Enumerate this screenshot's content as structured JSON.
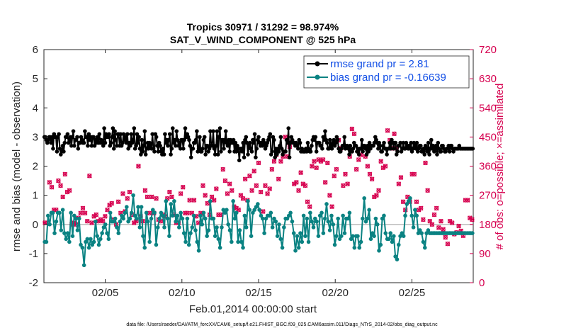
{
  "chart_data": {
    "type": "line",
    "title": "Tropics 30971 / 31292 = 98.974%",
    "subtitle": "SAT_V_WIND_COMPONENT @ 525 hPa",
    "xlabel": "Feb.01,2014 00:00:00 start",
    "ylabel": "rmse and bias (model - observation)",
    "y2label": "# of obs: o=possible; ×=assimilated",
    "footnote": "data file: /Users/raeder/DAI/ATM_forcXX/CAM6_setup/f.e21.FHIST_BGC.f09_025.CAM6assim.011/Diags_NTrS_2014-02/obs_diag_output.nc",
    "xlim": [
      1,
      29
    ],
    "ylim": [
      -2,
      6
    ],
    "y2lim": [
      0,
      720
    ],
    "xticks": [
      5,
      10,
      15,
      20,
      25
    ],
    "xtick_labels": [
      "02/05",
      "02/10",
      "02/15",
      "02/20",
      "02/25"
    ],
    "yticks": [
      "-2",
      "-1",
      "0",
      "1",
      "2",
      "3",
      "4",
      "5",
      "6"
    ],
    "y2ticks": [
      "0",
      "90",
      "180",
      "270",
      "360",
      "450",
      "540",
      "630",
      "720"
    ],
    "legend": [
      "rmse grand pr = 2.81",
      "bias grand pr = -0.16639"
    ],
    "colors": {
      "rmse": "#000000",
      "bias": "#0a8282",
      "obs": "#d6004f",
      "zero": "#bfbfbf",
      "legend_text": "#1450e6"
    },
    "rmse": [
      3.0,
      3.0,
      2.9,
      2.8,
      2.9,
      3.0,
      3.0,
      2.8,
      3.0,
      2.6,
      3.1,
      3.0,
      3.0,
      2.5,
      3.0,
      3.1,
      2.6,
      2.4,
      2.5,
      2.7,
      2.5,
      2.8,
      3.0,
      3.0,
      3.1,
      2.8,
      2.9,
      3.0,
      2.7,
      3.0,
      3.2,
      2.7,
      2.9,
      2.9,
      3.0,
      2.6,
      2.8,
      2.8,
      3.0,
      2.9,
      2.8,
      2.8,
      3.2,
      3.0,
      3.0,
      2.7,
      3.1,
      2.9,
      3.0,
      2.7,
      3.0,
      3.0,
      2.7,
      2.9,
      2.8,
      3.0,
      2.8,
      3.1,
      2.8,
      2.9,
      2.8,
      2.7,
      3.3,
      2.8,
      3.1,
      3.0,
      3.0,
      3.1,
      2.7,
      2.8,
      3.0,
      3.3,
      2.6,
      3.2,
      2.9,
      2.7,
      3.1,
      3.1,
      2.7,
      3.1,
      2.7,
      2.8,
      3.1,
      2.9,
      3.0,
      2.8,
      3.1,
      2.6,
      2.8,
      2.7,
      3.1,
      2.8,
      2.9,
      3.3,
      2.6,
      2.7,
      3.1,
      2.8,
      3.0,
      2.6,
      2.4,
      2.9,
      2.5,
      2.7,
      3.2,
      2.4,
      2.6,
      2.8,
      2.6,
      2.8,
      2.7,
      2.6,
      3.1,
      2.6,
      2.5,
      3.1,
      3.0,
      2.7,
      2.5,
      2.8,
      2.7,
      2.5,
      2.4,
      2.6,
      2.4,
      3.1,
      2.8,
      2.9,
      2.7,
      2.9,
      3.1,
      2.4,
      2.6,
      3.3,
      2.8,
      2.9,
      2.7,
      3.2,
      2.9,
      2.7,
      2.8,
      2.6,
      2.9,
      2.9,
      2.6,
      2.9,
      3.3,
      3.0,
      3.1,
      3.0,
      2.9,
      2.7,
      2.3,
      2.6,
      2.6,
      2.8,
      2.8,
      2.9,
      3.2,
      2.5,
      2.6,
      3.0,
      2.5,
      2.5,
      2.6,
      2.9,
      3.0,
      2.4,
      2.7,
      2.7,
      2.5,
      2.6,
      3.2,
      2.7,
      2.7,
      3.2,
      2.6,
      2.4,
      2.7,
      3.2,
      2.4,
      3.0,
      3.3,
      2.5,
      2.9,
      2.9,
      2.6,
      2.9,
      3.2,
      2.8,
      2.7,
      2.9,
      2.5,
      2.9,
      2.8,
      2.8,
      2.9,
      2.5,
      2.8,
      2.5,
      2.7,
      2.6,
      2.2,
      2.6,
      2.6,
      2.5,
      2.8,
      2.3,
      2.9,
      3.0,
      2.8,
      2.4,
      2.7,
      2.8,
      2.6,
      2.5,
      2.9,
      2.8,
      3.1,
      2.3,
      2.6,
      2.9,
      3.0,
      2.8,
      2.7,
      2.8,
      2.7,
      2.9,
      2.8,
      2.6,
      2.7,
      2.8,
      2.9,
      3.0,
      3.1,
      2.4,
      2.5,
      3.0,
      2.9,
      2.3,
      2.6,
      2.4,
      2.6,
      2.5,
      2.7,
      3.0,
      2.6,
      2.4,
      2.5,
      2.5,
      2.5,
      2.9,
      2.8,
      3.3,
      2.3,
      2.8,
      3.0,
      2.9,
      2.8,
      2.8,
      2.7,
      2.8,
      2.7,
      2.6,
      2.9,
      2.8,
      2.5,
      2.6,
      2.5,
      2.5,
      2.5,
      2.6,
      2.5,
      2.8,
      2.6,
      2.5,
      2.5,
      2.7,
      2.9,
      3.0,
      2.9,
      3.0,
      2.5,
      2.8,
      2.8,
      2.8,
      2.7,
      2.7,
      2.6,
      3.0,
      2.9,
      3.2,
      2.9,
      2.8,
      2.6,
      2.6,
      2.9,
      2.7,
      2.6,
      2.8,
      2.9,
      2.7,
      2.8,
      3.0,
      2.9,
      2.6,
      2.5,
      2.5,
      2.6,
      2.7,
      2.7,
      3.0,
      2.6,
      2.7,
      2.7,
      2.6,
      2.4,
      2.7,
      2.5,
      2.5,
      2.6,
      2.8,
      2.7,
      2.7,
      2.5,
      2.6,
      2.4,
      2.6,
      2.6,
      2.9,
      2.5,
      2.7,
      2.7,
      2.6,
      2.4,
      2.7,
      2.5,
      2.8,
      2.6,
      2.7,
      2.7,
      2.7,
      2.8,
      3.0,
      2.9,
      2.8,
      2.6,
      2.8,
      2.7,
      2.5,
      2.5,
      2.7,
      2.8,
      2.6,
      2.6,
      2.4,
      2.6,
      2.6,
      2.8,
      2.6,
      2.9,
      2.8,
      2.6,
      2.8,
      2.8,
      2.4,
      2.5,
      2.7,
      2.7,
      2.8,
      2.5,
      2.6,
      2.8,
      2.6,
      2.6,
      2.8,
      2.7,
      2.6,
      2.7,
      2.6,
      2.8,
      2.5,
      2.6,
      2.8,
      2.7,
      2.6,
      2.8,
      2.5,
      2.6,
      2.7,
      2.7,
      2.5,
      2.5,
      2.6,
      2.4,
      2.7,
      2.6,
      2.5,
      2.8,
      2.4,
      2.6,
      2.9,
      2.6,
      2.7,
      2.5,
      2.6,
      2.7,
      2.4,
      2.8,
      2.6,
      2.5,
      2.5,
      2.7,
      2.7,
      2.6,
      2.5,
      2.5,
      2.6,
      2.6,
      2.7,
      2.5,
      2.7,
      2.7,
      2.6,
      2.5,
      2.6,
      2.6,
      2.6,
      2.6,
      2.6,
      2.7,
      2.6,
      2.6,
      2.6,
      2.6,
      2.6,
      2.6,
      2.6,
      2.6,
      2.6,
      2.6,
      2.6,
      2.6,
      2.6,
      2.6
    ],
    "bias": [
      -0.6,
      -0.6,
      0.3,
      0.0,
      0.4,
      0.4,
      -0.3,
      0.1,
      0.4,
      0.4,
      -0.2,
      0.5,
      -0.3,
      -0.5,
      -0.3,
      -0.6,
      0.4,
      -0.4,
      0.3,
      0.2,
      -0.2,
      0.2,
      -0.7,
      -0.8,
      -1.4,
      -0.6,
      -0.5,
      -0.8,
      -0.5,
      -0.7,
      -0.6,
      0.1,
      -0.4,
      -0.7,
      -0.5,
      -0.3,
      -0.1,
      0.0,
      -0.3,
      -0.5,
      0.4,
      0.1,
      0.1,
      0.2,
      -0.1,
      -0.3,
      0.1,
      0.3,
      0.2,
      0.4,
      0.6,
      0.1,
      0.2,
      0.4,
      1.0,
      0.3,
      0.2,
      0.6,
      -0.1,
      0.6,
      -0.4,
      -0.8,
      0.4,
      0.1,
      -0.6,
      0.2,
      0.5,
      0.4,
      -0.7,
      -0.1,
      0.2,
      0.4,
      0.3,
      -0.1,
      0.8,
      0.2,
      -0.4,
      0.7,
      0.3,
      0.8,
      0.1,
      0.3,
      -0.1,
      0.4,
      0.2,
      -0.3,
      -0.6,
      0.2,
      -0.7,
      -0.3,
      -0.1,
      0.3,
      -0.2,
      -0.6,
      -0.9,
      0.3,
      0.0,
      0.4,
      0.2,
      -0.4,
      -0.2,
      0.8,
      0.2,
      0.2,
      -0.4,
      -0.1,
      -0.5,
      -0.8,
      -0.1,
      0.5,
      0.4,
      0.5,
      0.0,
      -0.2,
      -0.6,
      0.8,
      0.2,
      0.4,
      -0.6,
      -0.2,
      -0.6,
      -0.8,
      0.3,
      -0.1,
      0.8,
      0.5,
      -0.4,
      0.4,
      0.5,
      0.6,
      0.7,
      0.5,
      0.3,
      0.2,
      -0.3,
      0.2,
      0.3,
      0.3,
      0.4,
      -0.1,
      0.2,
      0.1,
      -0.4,
      0.0,
      -0.5,
      -0.8,
      -0.1,
      0.2,
      0.2,
      0.3,
      0.4,
      0.1,
      -0.3,
      -0.9,
      -0.4,
      -0.8,
      -0.3,
      -0.6,
      0.3,
      -0.4,
      0.2,
      -0.6,
      0.4,
      0.1,
      -0.1,
      0.2,
      0.1,
      -0.4,
      0.3,
      0.4,
      -0.3,
      0.2,
      0.7,
      0.1,
      -0.2,
      0.3,
      0.0,
      -0.7,
      -0.4,
      0.2,
      -0.5,
      -0.4,
      0.3,
      -0.3,
      0.2,
      0.2,
      0.4,
      -0.5,
      -0.4,
      -0.8,
      -0.4,
      -0.4,
      -0.8,
      -0.6,
      0.2,
      0.9,
      0.1,
      0.2,
      0.5,
      -0.5,
      -0.3,
      -0.4,
      0.2,
      0.0,
      -0.9,
      -0.7,
      0.2,
      0.3,
      -0.3,
      -0.5,
      -0.5,
      -0.3,
      -0.6,
      -0.4,
      -1.1,
      -1.2,
      -0.7,
      -0.4,
      -0.3,
      -0.4,
      0.3,
      0.7,
      0.8,
      0.9,
      0.3,
      -0.1,
      0.5,
      0.3,
      -0.3,
      -0.2,
      -0.3,
      -0.6,
      -0.8,
      -0.3,
      -0.2,
      -0.3,
      -0.3,
      -0.3,
      -0.3,
      -0.3,
      -0.3,
      -0.3,
      -0.3,
      -0.3,
      -0.3,
      -0.3,
      -0.3,
      -0.3,
      -0.3,
      -0.3,
      -0.3,
      -0.3,
      -0.3,
      -0.3,
      -0.3,
      -0.3,
      -0.3,
      -0.3,
      -0.3,
      -0.3,
      -0.3,
      -0.3
    ],
    "obs_possible": [
      185,
      185,
      310,
      295,
      225,
      225,
      315,
      300,
      265,
      335,
      280,
      285,
      180,
      185,
      180,
      200,
      215,
      230,
      215,
      190,
      330,
      185,
      205,
      210,
      190,
      195,
      190,
      205,
      225,
      240,
      245,
      195,
      180,
      250,
      215,
      275,
      220,
      260,
      280,
      210,
      185,
      190,
      360,
      205,
      190,
      285,
      265,
      215,
      265,
      215,
      260,
      195,
      190,
      210,
      205,
      260,
      280,
      265,
      210,
      185,
      185,
      275,
      295,
      215,
      215,
      255,
      215,
      255,
      205,
      185,
      215,
      300,
      270,
      245,
      210,
      265,
      255,
      290,
      210,
      210,
      350,
      315,
      275,
      305,
      285,
      235,
      230,
      225,
      270,
      260,
      320,
      255,
      330,
      285,
      345,
      300,
      370,
      280,
      220,
      300,
      275,
      290,
      350,
      375,
      395,
      320,
      375,
      390,
      450,
      390,
      420,
      435,
      305,
      310,
      285,
      340,
      305,
      300,
      250,
      235,
      360,
      375,
      355,
      380,
      375,
      380,
      310,
      370,
      270,
      235,
      330,
      350,
      440,
      415,
      300,
      335,
      305,
      390,
      475,
      460,
      350,
      380,
      395,
      420,
      390,
      360,
      335,
      320,
      265,
      270,
      285,
      375,
      355,
      360,
      470,
      440,
      415,
      460,
      415,
      305,
      325,
      250,
      225,
      265,
      250,
      335,
      335,
      250,
      225,
      230,
      195,
      370,
      285,
      190,
      180,
      210,
      230,
      170,
      190,
      165,
      140,
      120,
      190,
      185,
      150,
      155,
      175,
      160,
      145,
      255,
      255,
      200,
      195
    ],
    "obs_assimilated": [
      185,
      185,
      310,
      295,
      225,
      225,
      315,
      300,
      265,
      335,
      280,
      285,
      180,
      185,
      180,
      200,
      215,
      230,
      215,
      190,
      330,
      185,
      205,
      210,
      190,
      195,
      190,
      205,
      225,
      240,
      245,
      195,
      180,
      250,
      215,
      275,
      220,
      260,
      280,
      210,
      185,
      190,
      360,
      205,
      190,
      285,
      265,
      215,
      265,
      215,
      260,
      195,
      190,
      210,
      205,
      260,
      280,
      265,
      210,
      185,
      185,
      275,
      295,
      215,
      215,
      255,
      215,
      255,
      205,
      185,
      215,
      300,
      270,
      245,
      210,
      265,
      255,
      290,
      210,
      210,
      350,
      315,
      275,
      305,
      285,
      235,
      230,
      225,
      270,
      260,
      320,
      255,
      330,
      285,
      345,
      300,
      370,
      280,
      220,
      300,
      275,
      290,
      350,
      375,
      395,
      320,
      375,
      390,
      450,
      390,
      420,
      435,
      305,
      310,
      285,
      340,
      305,
      300,
      250,
      235,
      360,
      375,
      355,
      380,
      375,
      380,
      310,
      370,
      270,
      235,
      330,
      350,
      440,
      415,
      300,
      335,
      305,
      390,
      475,
      460,
      350,
      380,
      395,
      420,
      390,
      360,
      335,
      320,
      265,
      270,
      285,
      375,
      355,
      360,
      470,
      440,
      415,
      460,
      415,
      305,
      325,
      250,
      225,
      265,
      250,
      335,
      335,
      250,
      225,
      230,
      195,
      370,
      285,
      190,
      180,
      210,
      230,
      170,
      190,
      165,
      140,
      120,
      190,
      185,
      150,
      155,
      175,
      160,
      145,
      255,
      255,
      200,
      195
    ]
  }
}
